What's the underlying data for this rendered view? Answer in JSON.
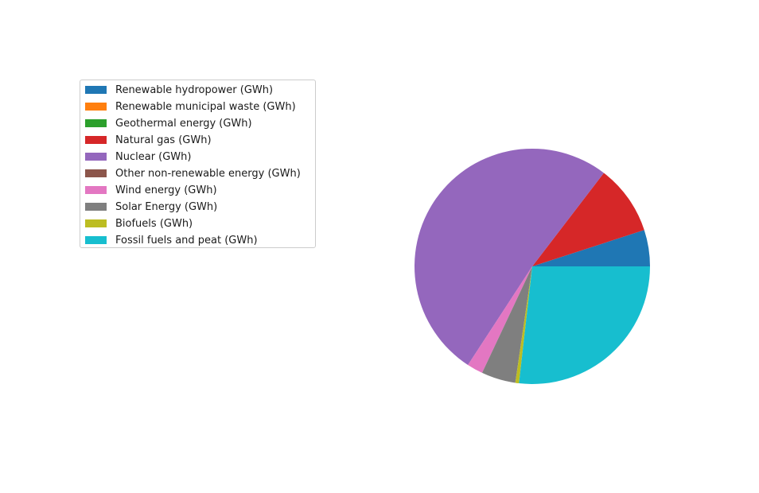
{
  "chart_data": {
    "type": "pie",
    "title": "",
    "start_angle_deg": 0,
    "direction": "counterclockwise",
    "legend_placement": "upper-left",
    "slices": [
      {
        "label": "Renewable hydropower (GWh)",
        "value": 5.0,
        "color": "#1f77b4"
      },
      {
        "label": "Renewable municipal waste (GWh)",
        "value": 0.0,
        "color": "#ff7f0e"
      },
      {
        "label": "Geothermal energy (GWh)",
        "value": 0.0,
        "color": "#2ca02c"
      },
      {
        "label": "Natural gas (GWh)",
        "value": 9.6,
        "color": "#d62728"
      },
      {
        "label": "Nuclear (GWh)",
        "value": 51.2,
        "color": "#9467bd"
      },
      {
        "label": "Other non-renewable energy (GWh)",
        "value": 0.0,
        "color": "#8c564b"
      },
      {
        "label": "Wind energy (GWh)",
        "value": 2.2,
        "color": "#e377c2"
      },
      {
        "label": "Solar Energy (GWh)",
        "value": 4.7,
        "color": "#7f7f7f"
      },
      {
        "label": "Biofuels (GWh)",
        "value": 0.5,
        "color": "#bcbd22"
      },
      {
        "label": "Fossil fuels and peat (GWh)",
        "value": 26.8,
        "color": "#17becf"
      }
    ]
  }
}
